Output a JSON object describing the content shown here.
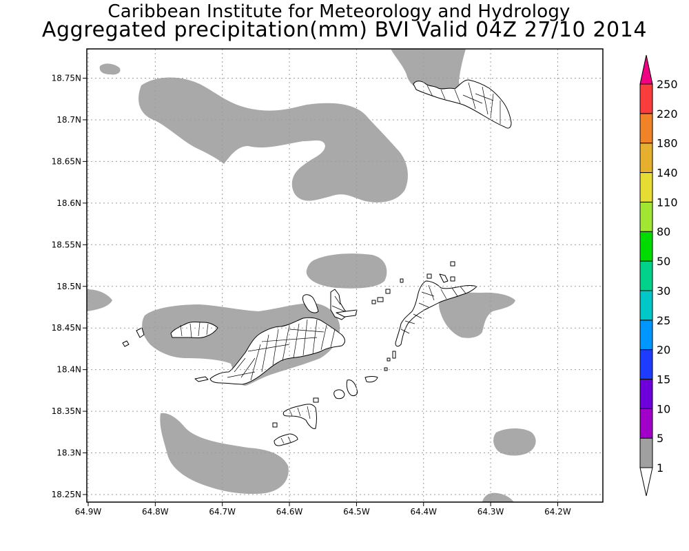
{
  "title": {
    "line1": "Caribbean Institute for Meteorology and Hydrology",
    "line2": "Aggregated precipitation(mm) BVI Valid 04Z 27/10 2014"
  },
  "map": {
    "lon_range": [
      -64.9,
      -64.15
    ],
    "lat_range": [
      18.245,
      18.785
    ],
    "grid": "dotted",
    "x_ticks": [
      {
        "value": -64.9,
        "label": "64.9W"
      },
      {
        "value": -64.8,
        "label": "64.8W"
      },
      {
        "value": -64.7,
        "label": "64.7W"
      },
      {
        "value": -64.6,
        "label": "64.6W"
      },
      {
        "value": -64.5,
        "label": "64.5W"
      },
      {
        "value": -64.4,
        "label": "64.4W"
      },
      {
        "value": -64.3,
        "label": "64.3W"
      },
      {
        "value": -64.2,
        "label": "64.2W"
      }
    ],
    "y_ticks": [
      {
        "value": 18.25,
        "label": "18.25N"
      },
      {
        "value": 18.3,
        "label": "18.3N"
      },
      {
        "value": 18.35,
        "label": "18.35N"
      },
      {
        "value": 18.4,
        "label": "18.4N"
      },
      {
        "value": 18.45,
        "label": "18.45N"
      },
      {
        "value": 18.5,
        "label": "18.5N"
      },
      {
        "value": 18.55,
        "label": "18.55N"
      },
      {
        "value": 18.6,
        "label": "18.6N"
      },
      {
        "value": 18.65,
        "label": "18.65N"
      },
      {
        "value": 18.7,
        "label": "18.7N"
      },
      {
        "value": 18.75,
        "label": "18.75N"
      }
    ],
    "precip_fill_color": "#a9a9a9",
    "precip_category": "1-5 mm",
    "land_outline_color": "#000000",
    "land_fill_color": "#ffffff"
  },
  "colorbar": {
    "orientation": "vertical",
    "levels": [
      "1",
      "5",
      "10",
      "15",
      "20",
      "25",
      "30",
      "50",
      "80",
      "110",
      "140",
      "180",
      "220",
      "250"
    ],
    "colors": [
      "#a0a0a0",
      "#a000c8",
      "#6e00dc",
      "#1e3cff",
      "#0096ff",
      "#00c8c8",
      "#00d28c",
      "#00dc00",
      "#a0e632",
      "#e6dc32",
      "#e6af2d",
      "#f08228",
      "#fa3c3c",
      "#f00082"
    ]
  }
}
